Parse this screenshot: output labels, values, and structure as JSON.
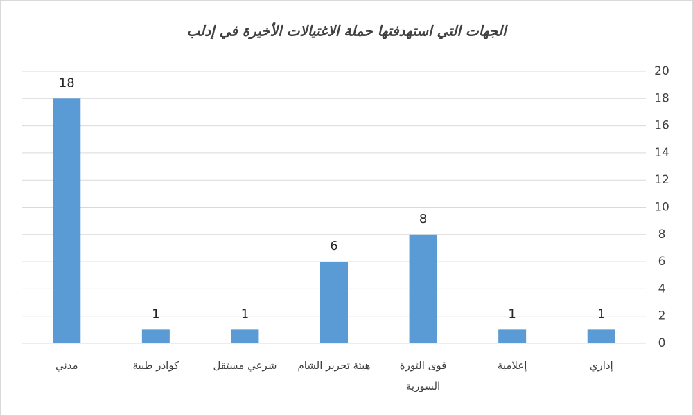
{
  "chart_data": {
    "type": "bar",
    "title": "الجهات التي استهدفتها حملة الاغتيالات الأخيرة في إدلب",
    "categories": [
      "إداري",
      "إعلامية",
      "قوى الثورة السورية",
      "هيئة تحرير الشام",
      "شرعي مستقل",
      "كوادر طبية",
      "مدني"
    ],
    "values": [
      1,
      1,
      8,
      6,
      1,
      1,
      18
    ],
    "color": "#5b9bd5",
    "ylim": [
      0,
      20
    ],
    "yticks": [
      0,
      2,
      4,
      6,
      8,
      10,
      12,
      14,
      16,
      18,
      20
    ],
    "grid": true
  }
}
